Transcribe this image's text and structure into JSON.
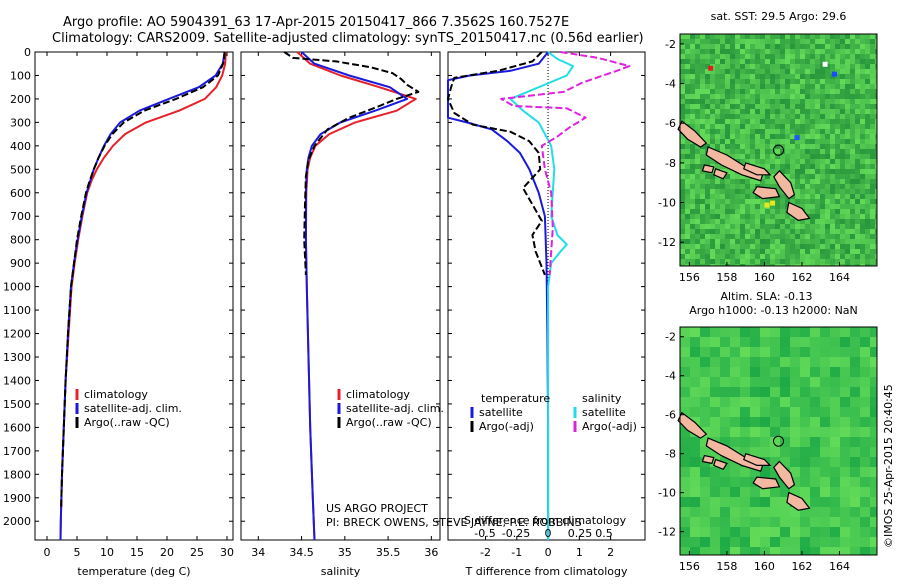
{
  "header": {
    "line1": "Argo profile: AO 5904391_63 17-Apr-2015 20150417_866 7.3562S 160.7527E",
    "line2": "Climatology: CARS2009. Satellite-adjusted climatology: synTS_20150417.nc (0.56d earlier)"
  },
  "colors": {
    "climatology": "#e8202a",
    "satellite": "#1a1adc",
    "argo": "#000000",
    "salinity_satellite": "#22dde8",
    "salinity_argo": "#e020e0",
    "land": "#f2b8a0",
    "ocean_sst": "#3cb04a",
    "ocean_sla": "#28c850"
  },
  "chart_data": [
    {
      "type": "line",
      "xlabel": "temperature (deg C)",
      "ylabel": "",
      "xlim": [
        -2,
        31
      ],
      "ylim": [
        2080,
        0
      ],
      "xticks": [
        0,
        5,
        10,
        15,
        20,
        25,
        30
      ],
      "yticks": [
        0,
        100,
        200,
        300,
        400,
        500,
        600,
        700,
        800,
        900,
        1000,
        1100,
        1200,
        1300,
        1400,
        1500,
        1600,
        1700,
        1800,
        1900,
        2000
      ],
      "legend": [
        "climatology",
        "satellite-adj. clim.",
        "Argo(..raw -QC)"
      ],
      "legend_position": "lower-right",
      "series": [
        {
          "name": "climatology",
          "style": "solid",
          "color": "#e8202a",
          "points": [
            [
              29.8,
              0
            ],
            [
              29.7,
              50
            ],
            [
              29.2,
              100
            ],
            [
              28.2,
              150
            ],
            [
              26.3,
              200
            ],
            [
              22,
              250
            ],
            [
              16.5,
              300
            ],
            [
              13,
              350
            ],
            [
              11,
              400
            ],
            [
              9.5,
              450
            ],
            [
              8.3,
              500
            ],
            [
              7.4,
              550
            ],
            [
              6.7,
              600
            ],
            [
              5.9,
              700
            ],
            [
              5.2,
              800
            ],
            [
              4.6,
              900
            ],
            [
              4.1,
              1000
            ],
            [
              3.6,
              1200
            ],
            [
              3.1,
              1400
            ],
            [
              2.8,
              1600
            ],
            [
              2.5,
              1800
            ],
            [
              2.3,
              2000
            ],
            [
              2.25,
              2080
            ]
          ]
        },
        {
          "name": "satellite-adj. clim.",
          "style": "solid",
          "color": "#1a1adc",
          "points": [
            [
              29.6,
              0
            ],
            [
              29.3,
              50
            ],
            [
              28.1,
              100
            ],
            [
              25.3,
              150
            ],
            [
              20.3,
              200
            ],
            [
              15.4,
              250
            ],
            [
              12.2,
              300
            ],
            [
              10.6,
              350
            ],
            [
              9.5,
              400
            ],
            [
              8.6,
              450
            ],
            [
              7.8,
              500
            ],
            [
              7.2,
              550
            ],
            [
              6.6,
              600
            ],
            [
              5.8,
              700
            ],
            [
              5.1,
              800
            ],
            [
              4.5,
              900
            ],
            [
              4,
              1000
            ],
            [
              3.5,
              1200
            ],
            [
              3.1,
              1400
            ],
            [
              2.8,
              1600
            ],
            [
              2.5,
              1800
            ],
            [
              2.3,
              2000
            ],
            [
              2.25,
              2080
            ]
          ]
        },
        {
          "name": "Argo(..raw -QC)",
          "style": "dashed",
          "color": "#000000",
          "points": [
            [
              29.6,
              0
            ],
            [
              29.5,
              40
            ],
            [
              28.5,
              100
            ],
            [
              26,
              150
            ],
            [
              21.5,
              200
            ],
            [
              16.2,
              250
            ],
            [
              12.8,
              300
            ],
            [
              10.9,
              350
            ],
            [
              9.6,
              400
            ],
            [
              8.6,
              450
            ],
            [
              7.8,
              500
            ],
            [
              7.1,
              550
            ],
            [
              6.5,
              600
            ],
            [
              5.7,
              700
            ],
            [
              5,
              800
            ],
            [
              4.5,
              900
            ],
            [
              4,
              1000
            ],
            [
              3.5,
              1200
            ],
            [
              3.1,
              1400
            ],
            [
              2.8,
              1600
            ],
            [
              2.5,
              1800
            ],
            [
              2.35,
              1950
            ]
          ]
        }
      ]
    },
    {
      "type": "line",
      "xlabel": "salinity",
      "xlim": [
        33.8,
        36.1
      ],
      "ylim": [
        2080,
        0
      ],
      "xticks": [
        34,
        34.5,
        35,
        35.5,
        36
      ],
      "legend": [
        "climatology",
        "satellite-adj. clim.",
        "Argo(..raw -QC)"
      ],
      "legend_position": "lower-right",
      "annotation_line1": "US ARGO PROJECT",
      "annotation_line2": "PI: BRECK OWENS, STEVE JAYNE, P.E. ROBBINS",
      "series": [
        {
          "name": "climatology",
          "style": "solid",
          "color": "#e8202a",
          "points": [
            [
              34.45,
              0
            ],
            [
              34.6,
              50
            ],
            [
              34.95,
              100
            ],
            [
              35.4,
              150
            ],
            [
              35.82,
              200
            ],
            [
              35.6,
              250
            ],
            [
              35.12,
              300
            ],
            [
              34.82,
              350
            ],
            [
              34.66,
              400
            ],
            [
              34.6,
              450
            ],
            [
              34.57,
              500
            ],
            [
              34.555,
              600
            ],
            [
              34.55,
              800
            ],
            [
              34.56,
              1000
            ],
            [
              34.58,
              1300
            ],
            [
              34.6,
              1600
            ],
            [
              34.63,
              1900
            ],
            [
              34.65,
              2080
            ]
          ]
        },
        {
          "name": "satellite-adj. clim.",
          "style": "solid",
          "color": "#1a1adc",
          "points": [
            [
              34.5,
              0
            ],
            [
              34.65,
              50
            ],
            [
              35.05,
              100
            ],
            [
              35.52,
              150
            ],
            [
              35.72,
              200
            ],
            [
              35.35,
              250
            ],
            [
              34.95,
              300
            ],
            [
              34.72,
              350
            ],
            [
              34.62,
              400
            ],
            [
              34.58,
              450
            ],
            [
              34.56,
              500
            ],
            [
              34.55,
              600
            ],
            [
              34.55,
              800
            ],
            [
              34.56,
              1000
            ],
            [
              34.58,
              1300
            ],
            [
              34.6,
              1600
            ],
            [
              34.63,
              1900
            ],
            [
              34.65,
              2080
            ]
          ]
        },
        {
          "name": "Argo(..raw -QC)",
          "style": "dashed",
          "color": "#000000",
          "points": [
            [
              34.3,
              0
            ],
            [
              34.4,
              25
            ],
            [
              34.9,
              40
            ],
            [
              35.3,
              65
            ],
            [
              35.55,
              90
            ],
            [
              35.65,
              115
            ],
            [
              35.72,
              140
            ],
            [
              35.85,
              170
            ],
            [
              35.6,
              200
            ],
            [
              35.4,
              230
            ],
            [
              35.05,
              280
            ],
            [
              34.8,
              330
            ],
            [
              34.65,
              400
            ],
            [
              34.58,
              460
            ],
            [
              34.55,
              530
            ],
            [
              34.54,
              650
            ],
            [
              34.53,
              800
            ],
            [
              34.55,
              950
            ]
          ]
        }
      ]
    },
    {
      "type": "line",
      "xlabel": "T difference from climatology",
      "xlabel_top": "S difference from climatology",
      "xlim": [
        -3.2,
        3.1
      ],
      "ylim": [
        2080,
        0
      ],
      "xticks": [
        -2,
        -1,
        0,
        1,
        2
      ],
      "xticks_top": [
        "-0.5",
        "-0.25",
        "0",
        "0.25",
        "0.5"
      ],
      "legend_temperature": "temperature",
      "legend_salinity": "salinity",
      "legend": [
        "satellite",
        "Argo(-adj)",
        "satellite",
        "Argo(-adj)"
      ],
      "legend_position": "lower-center",
      "zero_line": "dotted",
      "series": [
        {
          "name": "temperature satellite",
          "style": "solid",
          "color": "#1a1adc",
          "points": [
            [
              0,
              0
            ],
            [
              -0.3,
              50
            ],
            [
              -1.2,
              80
            ],
            [
              -2.5,
              100
            ],
            [
              -3.2,
              120
            ],
            [
              -3.2,
              280
            ],
            [
              -2.6,
              300
            ],
            [
              -1.8,
              330
            ],
            [
              -1.3,
              380
            ],
            [
              -0.9,
              430
            ],
            [
              -0.6,
              500
            ],
            [
              -0.3,
              600
            ],
            [
              -0.1,
              700
            ],
            [
              -0.05,
              900
            ],
            [
              -0.02,
              1200
            ],
            [
              0,
              1600
            ],
            [
              0,
              2080
            ]
          ]
        },
        {
          "name": "temperature Argo(-adj)",
          "style": "dashed",
          "color": "#000000",
          "points": [
            [
              -0.2,
              0
            ],
            [
              -0.5,
              40
            ],
            [
              -1.6,
              80
            ],
            [
              -3,
              110
            ],
            [
              -3.1,
              150
            ],
            [
              -3.2,
              200
            ],
            [
              -3,
              260
            ],
            [
              -2.4,
              310
            ],
            [
              -1.2,
              340
            ],
            [
              -0.6,
              380
            ],
            [
              -0.3,
              430
            ],
            [
              -0.25,
              500
            ],
            [
              -0.8,
              580
            ],
            [
              -0.5,
              650
            ],
            [
              -0.2,
              720
            ],
            [
              -0.5,
              780
            ],
            [
              -0.4,
              850
            ],
            [
              -0.1,
              950
            ]
          ]
        },
        {
          "name": "salinity satellite",
          "style": "solid",
          "color": "#22dde8",
          "points": [
            [
              0,
              0
            ],
            [
              0.3,
              30
            ],
            [
              0.8,
              60
            ],
            [
              0.6,
              100
            ],
            [
              -1.2,
              200
            ],
            [
              -0.8,
              250
            ],
            [
              -0.3,
              300
            ],
            [
              0.1,
              400
            ],
            [
              0.2,
              500
            ],
            [
              0.1,
              700
            ],
            [
              0.3,
              780
            ],
            [
              0.6,
              820
            ],
            [
              0.4,
              850
            ],
            [
              0.1,
              900
            ],
            [
              0,
              1000
            ],
            [
              0,
              2080
            ]
          ]
        },
        {
          "name": "salinity Argo(-adj)",
          "style": "dashed",
          "color": "#e020e0",
          "points": [
            [
              0.4,
              0
            ],
            [
              1.6,
              25
            ],
            [
              2.6,
              60
            ],
            [
              2.2,
              80
            ],
            [
              1.1,
              130
            ],
            [
              0.5,
              170
            ],
            [
              -1.5,
              200
            ],
            [
              -1.1,
              230
            ],
            [
              0.6,
              240
            ],
            [
              1.2,
              280
            ],
            [
              0.7,
              320
            ],
            [
              0.3,
              360
            ],
            [
              -0.2,
              400
            ],
            [
              -0.1,
              500
            ],
            [
              0.1,
              600
            ],
            [
              0.15,
              750
            ],
            [
              0.05,
              950
            ]
          ]
        }
      ]
    },
    {
      "type": "heatmap",
      "title": "sat. SST: 29.5  Argo: 29.6",
      "xticks": [
        156,
        158,
        160,
        162,
        164
      ],
      "yticks": [
        -2,
        -4,
        -6,
        -8,
        -10,
        -12
      ],
      "xlim": [
        155.5,
        166
      ],
      "ylim": [
        -13.2,
        -1.5
      ],
      "argo_position": [
        160.75,
        -7.36
      ]
    },
    {
      "type": "heatmap",
      "title": "Altim. SLA: -0.13",
      "subtitle": "Argo h1000: -0.13 h2000: NaN",
      "xticks": [
        156,
        158,
        160,
        162,
        164
      ],
      "yticks": [
        -2,
        -4,
        -6,
        -8,
        -10,
        -12
      ],
      "xlim": [
        155.5,
        166
      ],
      "ylim": [
        -13.2,
        -1.5
      ],
      "argo_position": [
        160.75,
        -7.36
      ]
    }
  ],
  "watermark": "©IMOS 25-Apr-2015 20:40:45"
}
